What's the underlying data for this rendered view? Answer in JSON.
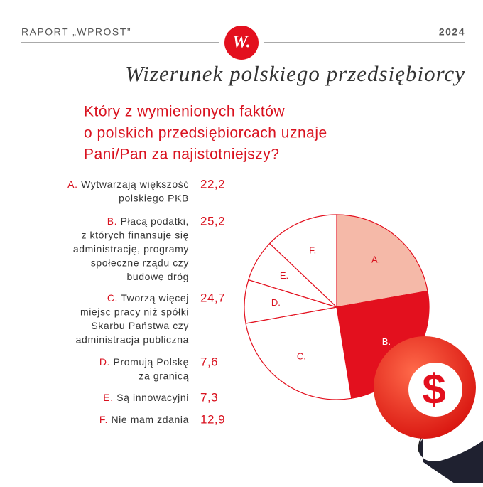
{
  "header": {
    "left": "RAPORT „WPROST”",
    "right": "2024",
    "logo": "W."
  },
  "chart_data": {
    "type": "pie",
    "title": "Wizerunek polskiego przedsiębiorcy",
    "subtitle_lines": [
      "Który z wymienionych faktów",
      "o polskich przedsiębiorcach uznaje",
      "Pani/Pan za najistotniejszy?"
    ],
    "categories": [
      "A.",
      "B.",
      "C.",
      "D.",
      "E.",
      "F."
    ],
    "descriptions": [
      [
        "Wytwarzają większość",
        "polskiego PKB"
      ],
      [
        "Płacą podatki,",
        "z których finansuje się",
        "administrację, programy",
        "społeczne rządu czy",
        "budowę dróg"
      ],
      [
        "Tworzą więcej",
        "miejsc pracy niż spółki",
        "Skarbu Państwa czy",
        "administracja publiczna"
      ],
      [
        "Promują Polskę",
        "za granicą"
      ],
      [
        "Są innowacyjni"
      ],
      [
        "Nie mam zdania"
      ]
    ],
    "values": [
      22.2,
      25.2,
      24.7,
      7.6,
      7.3,
      12.9
    ],
    "value_labels": [
      "22,2",
      "25,2",
      "24,7",
      "7,6",
      "7,3",
      "12,9"
    ],
    "colors": [
      "#f5b9a8",
      "#e3101e",
      "#ffffff",
      "#ffffff",
      "#ffffff",
      "#ffffff"
    ],
    "label_colors": [
      "#d9121f",
      "#ffffff",
      "#d9121f",
      "#d9121f",
      "#d9121f",
      "#d9121f"
    ]
  }
}
